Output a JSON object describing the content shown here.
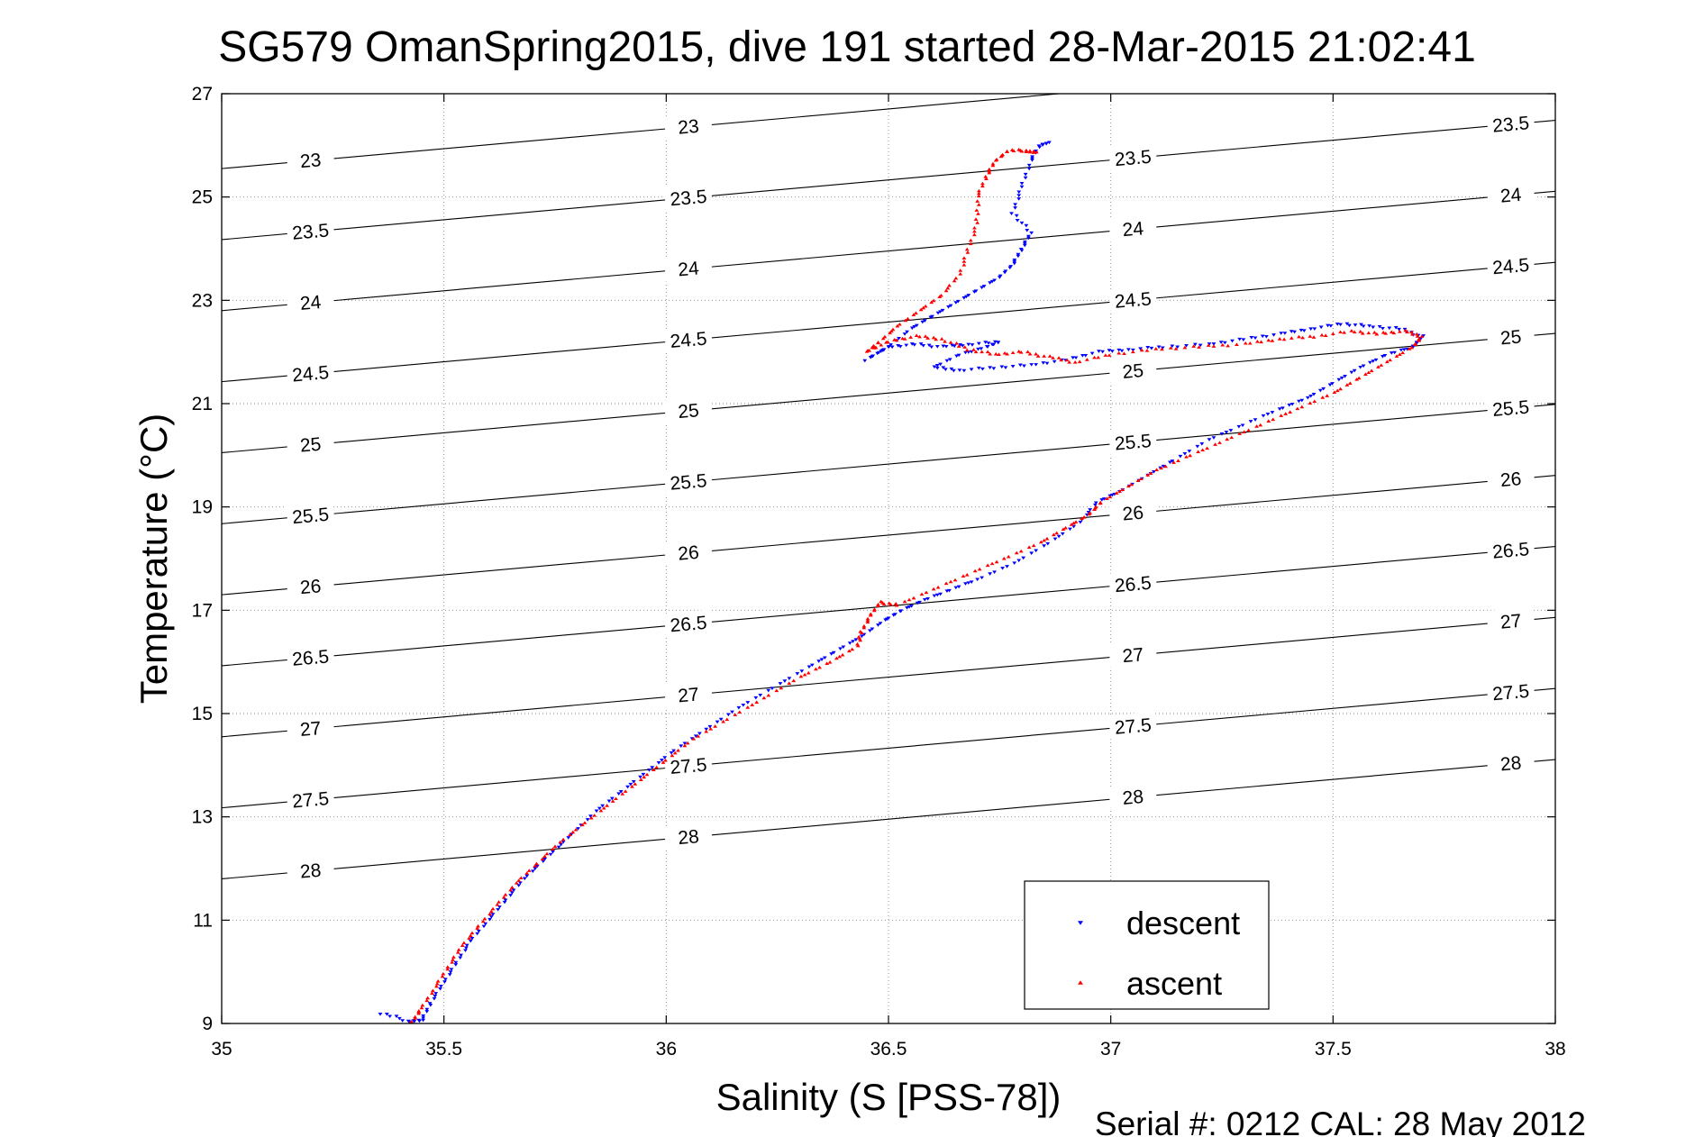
{
  "chart_data": {
    "type": "scatter",
    "title": "SG579 OmanSpring2015, dive 191 started 28-Mar-2015 21:02:41",
    "xlabel": "Salinity (S [PSS-78])",
    "ylabel": "Temperature (°C)",
    "xlim": [
      35,
      38
    ],
    "ylim": [
      9,
      27
    ],
    "xticks": [
      35,
      35.5,
      36,
      36.5,
      37,
      37.5,
      38
    ],
    "xtick_labels": [
      "35",
      "35.5",
      "36",
      "36.5",
      "37",
      "37.5",
      "38"
    ],
    "yticks": [
      9,
      11,
      13,
      15,
      17,
      19,
      21,
      23,
      25,
      27
    ],
    "ytick_labels": [
      "9",
      "11",
      "13",
      "15",
      "17",
      "19",
      "21",
      "23",
      "25",
      "27"
    ],
    "grid": true,
    "grid_style": "dotted",
    "legend_position": "bottom-right",
    "footer": "Serial #: 0212  CAL: 28 May 2012",
    "series": [
      {
        "name": "descent",
        "color": "#0000ff",
        "marker": "triangle-down",
        "points": [
          [
            35.36,
            9.2
          ],
          [
            35.42,
            9.05
          ],
          [
            35.45,
            9.05
          ],
          [
            35.47,
            9.4
          ],
          [
            35.5,
            9.8
          ],
          [
            35.53,
            10.2
          ],
          [
            35.56,
            10.6
          ],
          [
            35.6,
            11.0
          ],
          [
            35.64,
            11.4
          ],
          [
            35.68,
            11.8
          ],
          [
            35.73,
            12.2
          ],
          [
            35.78,
            12.6
          ],
          [
            35.84,
            13.1
          ],
          [
            35.9,
            13.5
          ],
          [
            35.96,
            13.9
          ],
          [
            36.02,
            14.3
          ],
          [
            36.09,
            14.7
          ],
          [
            36.16,
            15.1
          ],
          [
            36.24,
            15.5
          ],
          [
            36.32,
            15.9
          ],
          [
            36.38,
            16.2
          ],
          [
            36.44,
            16.5
          ],
          [
            36.49,
            16.8
          ],
          [
            36.53,
            17.0
          ],
          [
            36.58,
            17.2
          ],
          [
            36.64,
            17.4
          ],
          [
            36.7,
            17.6
          ],
          [
            36.78,
            17.9
          ],
          [
            36.86,
            18.3
          ],
          [
            36.93,
            18.7
          ],
          [
            36.97,
            19.1
          ],
          [
            37.02,
            19.3
          ],
          [
            37.08,
            19.6
          ],
          [
            37.14,
            19.9
          ],
          [
            37.22,
            20.3
          ],
          [
            37.3,
            20.6
          ],
          [
            37.38,
            20.9
          ],
          [
            37.44,
            21.1
          ],
          [
            37.5,
            21.4
          ],
          [
            37.56,
            21.7
          ],
          [
            37.62,
            21.95
          ],
          [
            37.68,
            22.1
          ],
          [
            37.7,
            22.3
          ],
          [
            37.65,
            22.45
          ],
          [
            37.58,
            22.5
          ],
          [
            37.52,
            22.55
          ],
          [
            37.45,
            22.45
          ],
          [
            37.38,
            22.35
          ],
          [
            37.3,
            22.25
          ],
          [
            37.22,
            22.15
          ],
          [
            37.12,
            22.1
          ],
          [
            37.04,
            22.05
          ],
          [
            36.97,
            22.0
          ],
          [
            36.9,
            21.85
          ],
          [
            36.82,
            21.75
          ],
          [
            36.74,
            21.7
          ],
          [
            36.66,
            21.65
          ],
          [
            36.6,
            21.7
          ],
          [
            36.66,
            21.95
          ],
          [
            36.72,
            22.1
          ],
          [
            36.75,
            22.2
          ],
          [
            36.68,
            22.15
          ],
          [
            36.62,
            22.1
          ],
          [
            36.56,
            22.15
          ],
          [
            36.5,
            22.1
          ],
          [
            36.45,
            21.85
          ],
          [
            36.5,
            22.1
          ],
          [
            36.55,
            22.45
          ],
          [
            36.6,
            22.7
          ],
          [
            36.65,
            22.95
          ],
          [
            36.7,
            23.2
          ],
          [
            36.75,
            23.45
          ],
          [
            36.78,
            23.7
          ],
          [
            36.8,
            24.0
          ],
          [
            36.82,
            24.3
          ],
          [
            36.78,
            24.7
          ],
          [
            36.8,
            25.2
          ],
          [
            36.82,
            25.7
          ],
          [
            36.84,
            26.0
          ],
          [
            36.86,
            26.05
          ]
        ]
      },
      {
        "name": "ascent",
        "color": "#ff0000",
        "marker": "triangle-up",
        "points": [
          [
            35.43,
            9.05
          ],
          [
            35.45,
            9.3
          ],
          [
            35.48,
            9.7
          ],
          [
            35.51,
            10.1
          ],
          [
            35.54,
            10.5
          ],
          [
            35.58,
            10.9
          ],
          [
            35.62,
            11.3
          ],
          [
            35.66,
            11.7
          ],
          [
            35.71,
            12.1
          ],
          [
            35.76,
            12.5
          ],
          [
            35.82,
            12.9
          ],
          [
            35.88,
            13.3
          ],
          [
            35.94,
            13.7
          ],
          [
            36.0,
            14.1
          ],
          [
            36.06,
            14.5
          ],
          [
            36.14,
            14.9
          ],
          [
            36.22,
            15.3
          ],
          [
            36.3,
            15.7
          ],
          [
            36.37,
            16.0
          ],
          [
            36.43,
            16.3
          ],
          [
            36.44,
            16.6
          ],
          [
            36.46,
            16.9
          ],
          [
            36.48,
            17.15
          ],
          [
            36.52,
            17.1
          ],
          [
            36.6,
            17.4
          ],
          [
            36.68,
            17.7
          ],
          [
            36.76,
            18.0
          ],
          [
            36.84,
            18.3
          ],
          [
            36.9,
            18.6
          ],
          [
            36.95,
            18.85
          ],
          [
            36.98,
            19.1
          ],
          [
            37.04,
            19.4
          ],
          [
            37.1,
            19.7
          ],
          [
            37.18,
            20.0
          ],
          [
            37.26,
            20.3
          ],
          [
            37.34,
            20.6
          ],
          [
            37.42,
            20.9
          ],
          [
            37.5,
            21.2
          ],
          [
            37.56,
            21.5
          ],
          [
            37.62,
            21.8
          ],
          [
            37.68,
            22.1
          ],
          [
            37.7,
            22.3
          ],
          [
            37.66,
            22.4
          ],
          [
            37.6,
            22.35
          ],
          [
            37.54,
            22.4
          ],
          [
            37.46,
            22.3
          ],
          [
            37.38,
            22.25
          ],
          [
            37.3,
            22.15
          ],
          [
            37.2,
            22.1
          ],
          [
            37.1,
            22.05
          ],
          [
            37.0,
            21.95
          ],
          [
            36.92,
            21.8
          ],
          [
            36.86,
            21.9
          ],
          [
            36.8,
            22.0
          ],
          [
            36.74,
            21.95
          ],
          [
            36.68,
            22.05
          ],
          [
            36.62,
            22.25
          ],
          [
            36.56,
            22.3
          ],
          [
            36.5,
            22.2
          ],
          [
            36.45,
            22.0
          ],
          [
            36.48,
            22.2
          ],
          [
            36.52,
            22.5
          ],
          [
            36.57,
            22.8
          ],
          [
            36.62,
            23.1
          ],
          [
            36.66,
            23.5
          ],
          [
            36.68,
            24.0
          ],
          [
            36.7,
            24.5
          ],
          [
            36.7,
            25.0
          ],
          [
            36.72,
            25.4
          ],
          [
            36.74,
            25.7
          ],
          [
            36.77,
            25.9
          ],
          [
            36.81,
            25.9
          ],
          [
            36.83,
            25.85
          ]
        ]
      }
    ],
    "isopycnals": [
      {
        "label": "23",
        "sigma": 23
      },
      {
        "label": "23.5",
        "sigma": 23.5
      },
      {
        "label": "24",
        "sigma": 24
      },
      {
        "label": "24.5",
        "sigma": 24.5
      },
      {
        "label": "25",
        "sigma": 25
      },
      {
        "label": "25.5",
        "sigma": 25.5
      },
      {
        "label": "26",
        "sigma": 26
      },
      {
        "label": "26.5",
        "sigma": 26.5
      },
      {
        "label": "27",
        "sigma": 27
      },
      {
        "label": "27.5",
        "sigma": 27.5
      },
      {
        "label": "28",
        "sigma": 28
      }
    ]
  }
}
